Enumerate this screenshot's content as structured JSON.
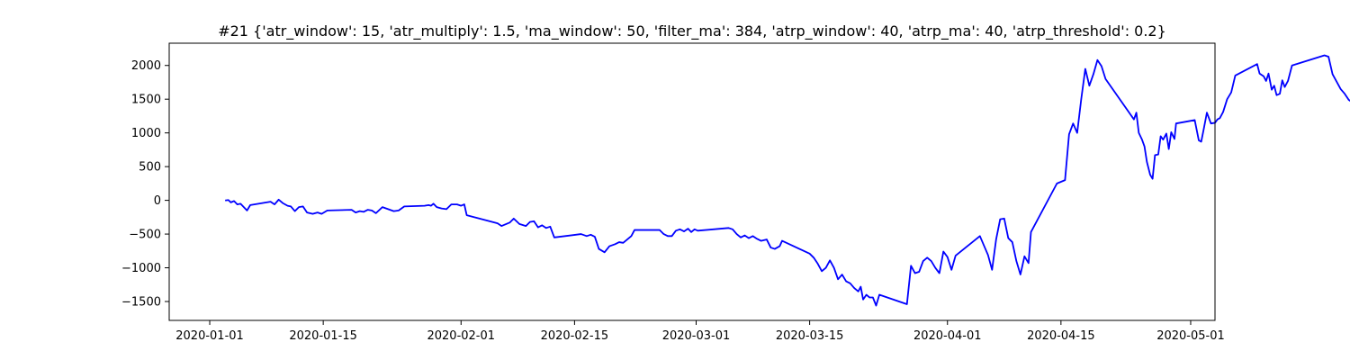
{
  "chart_data": {
    "type": "line",
    "title": "#21 {'atr_window': 15, 'atr_multiply': 1.5, 'ma_window': 50, 'filter_ma': 384, 'atrp_window': 40, 'atrp_ma': 40, 'atrp_threshold': 0.2}",
    "xlabel": "",
    "ylabel": "",
    "grid": false,
    "legend": "none",
    "xlim": [
      "2019-12-27",
      "2020-05-04"
    ],
    "ylim": [
      -1780,
      2330
    ],
    "x_ticks": [
      "2020-01-01",
      "2020-01-15",
      "2020-02-01",
      "2020-02-15",
      "2020-03-01",
      "2020-03-15",
      "2020-04-01",
      "2020-04-15",
      "2020-05-01"
    ],
    "y_ticks": [
      -1500,
      -1000,
      -500,
      0,
      500,
      1000,
      1500,
      2000
    ],
    "series": [
      {
        "color": "#0000ff",
        "points": [
          [
            "2020-01-03",
            0
          ],
          [
            "2020-01-03.3",
            5
          ],
          [
            "2020-01-03.6",
            -30
          ],
          [
            "2020-01-04",
            -10
          ],
          [
            "2020-01-04.4",
            -60
          ],
          [
            "2020-01-04.8",
            -50
          ],
          [
            "2020-01-05.2",
            -100
          ],
          [
            "2020-01-05.6",
            -150
          ],
          [
            "2020-01-06",
            -70
          ],
          [
            "2020-01-08.5",
            -20
          ],
          [
            "2020-01-09",
            -60
          ],
          [
            "2020-01-09.5",
            10
          ],
          [
            "2020-01-10",
            -40
          ],
          [
            "2020-01-10.6",
            -80
          ],
          [
            "2020-01-11",
            -90
          ],
          [
            "2020-01-11.5",
            -160
          ],
          [
            "2020-01-12",
            -100
          ],
          [
            "2020-01-12.5",
            -90
          ],
          [
            "2020-01-13",
            -180
          ],
          [
            "2020-01-13.7",
            -200
          ],
          [
            "2020-01-14.3",
            -180
          ],
          [
            "2020-01-14.8",
            -200
          ],
          [
            "2020-01-15.5",
            -150
          ],
          [
            "2020-01-18.5",
            -140
          ],
          [
            "2020-01-19",
            -180
          ],
          [
            "2020-01-19.5",
            -160
          ],
          [
            "2020-01-20",
            -170
          ],
          [
            "2020-01-20.5",
            -140
          ],
          [
            "2020-01-21",
            -150
          ],
          [
            "2020-01-21.5",
            -190
          ],
          [
            "2020-01-22.3",
            -100
          ],
          [
            "2020-01-23",
            -130
          ],
          [
            "2020-01-23.7",
            -160
          ],
          [
            "2020-01-24.3",
            -150
          ],
          [
            "2020-01-25",
            -90
          ],
          [
            "2020-01-27.5",
            -80
          ],
          [
            "2020-01-28",
            -70
          ],
          [
            "2020-01-28.3",
            -80
          ],
          [
            "2020-01-28.6",
            -50
          ],
          [
            "2020-01-29",
            -100
          ],
          [
            "2020-01-29.6",
            -120
          ],
          [
            "2020-01-30.2",
            -130
          ],
          [
            "2020-01-30.8",
            -60
          ],
          [
            "2020-01-31.5",
            -60
          ],
          [
            "2020-02-01",
            -80
          ],
          [
            "2020-02-01.4",
            -60
          ],
          [
            "2020-02-01.7",
            -220
          ],
          [
            "2020-02-05.5",
            -340
          ],
          [
            "2020-02-06",
            -380
          ],
          [
            "2020-02-07",
            -330
          ],
          [
            "2020-02-07.5",
            -270
          ],
          [
            "2020-02-08.2",
            -350
          ],
          [
            "2020-02-09",
            -380
          ],
          [
            "2020-02-09.5",
            -320
          ],
          [
            "2020-02-10",
            -310
          ],
          [
            "2020-02-10.5",
            -400
          ],
          [
            "2020-02-11",
            -370
          ],
          [
            "2020-02-11.5",
            -410
          ],
          [
            "2020-02-12",
            -390
          ],
          [
            "2020-02-12.5",
            -550
          ],
          [
            "2020-02-15.8",
            -500
          ],
          [
            "2020-02-16.5",
            -530
          ],
          [
            "2020-02-17",
            -510
          ],
          [
            "2020-02-17.5",
            -540
          ],
          [
            "2020-02-18",
            -720
          ],
          [
            "2020-02-18.7",
            -770
          ],
          [
            "2020-02-19.3",
            -680
          ],
          [
            "2020-02-20",
            -650
          ],
          [
            "2020-02-20.5",
            -620
          ],
          [
            "2020-02-21",
            -630
          ],
          [
            "2020-02-21.5",
            -580
          ],
          [
            "2020-02-22",
            -530
          ],
          [
            "2020-02-22.4",
            -440
          ],
          [
            "2020-02-25.5",
            -440
          ],
          [
            "2020-02-26",
            -500
          ],
          [
            "2020-02-26.5",
            -530
          ],
          [
            "2020-02-27",
            -530
          ],
          [
            "2020-02-27.5",
            -450
          ],
          [
            "2020-02-28",
            -430
          ],
          [
            "2020-02-28.5",
            -460
          ],
          [
            "2020-02-29",
            -420
          ],
          [
            "2020-02-29.4",
            -470
          ],
          [
            "2020-02-29.8",
            -430
          ],
          [
            "2020-03-01.2",
            -450
          ],
          [
            "2020-03-05",
            -410
          ],
          [
            "2020-03-05.5",
            -430
          ],
          [
            "2020-03-06",
            -500
          ],
          [
            "2020-03-06.5",
            -550
          ],
          [
            "2020-03-07",
            -520
          ],
          [
            "2020-03-07.5",
            -560
          ],
          [
            "2020-03-08",
            -530
          ],
          [
            "2020-03-08.5",
            -570
          ],
          [
            "2020-03-09",
            -600
          ],
          [
            "2020-03-09.7",
            -580
          ],
          [
            "2020-03-10.2",
            -700
          ],
          [
            "2020-03-10.7",
            -720
          ],
          [
            "2020-03-11.3",
            -680
          ],
          [
            "2020-03-11.6",
            -600
          ],
          [
            "2020-03-15",
            -790
          ],
          [
            "2020-03-15.5",
            -850
          ],
          [
            "2020-03-16",
            -940
          ],
          [
            "2020-03-16.5",
            -1050
          ],
          [
            "2020-03-17",
            -1000
          ],
          [
            "2020-03-17.5",
            -890
          ],
          [
            "2020-03-18",
            -1000
          ],
          [
            "2020-03-18.5",
            -1170
          ],
          [
            "2020-03-19",
            -1100
          ],
          [
            "2020-03-19.5",
            -1200
          ],
          [
            "2020-03-20",
            -1230
          ],
          [
            "2020-03-20.5",
            -1300
          ],
          [
            "2020-03-21",
            -1350
          ],
          [
            "2020-03-21.3",
            -1280
          ],
          [
            "2020-03-21.6",
            -1470
          ],
          [
            "2020-03-22",
            -1400
          ],
          [
            "2020-03-22.4",
            -1440
          ],
          [
            "2020-03-22.8",
            -1440
          ],
          [
            "2020-03-23.2",
            -1560
          ],
          [
            "2020-03-23.6",
            -1400
          ],
          [
            "2020-03-27",
            -1540
          ],
          [
            "2020-03-27.5",
            -970
          ],
          [
            "2020-03-28",
            -1080
          ],
          [
            "2020-03-28.5",
            -1060
          ],
          [
            "2020-03-29",
            -900
          ],
          [
            "2020-03-29.5",
            -850
          ],
          [
            "2020-03-30",
            -900
          ],
          [
            "2020-03-30.5",
            -1000
          ],
          [
            "2020-03-31",
            -1080
          ],
          [
            "2020-03-31.5",
            -760
          ],
          [
            "2020-04-01",
            -840
          ],
          [
            "2020-04-01.5",
            -1030
          ],
          [
            "2020-04-02",
            -820
          ],
          [
            "2020-04-05",
            -530
          ],
          [
            "2020-04-06",
            -810
          ],
          [
            "2020-04-06.5",
            -1030
          ],
          [
            "2020-04-07",
            -580
          ],
          [
            "2020-04-07.5",
            -280
          ],
          [
            "2020-04-08",
            -270
          ],
          [
            "2020-04-08.5",
            -560
          ],
          [
            "2020-04-09",
            -620
          ],
          [
            "2020-04-09.5",
            -900
          ],
          [
            "2020-04-10",
            -1100
          ],
          [
            "2020-04-10.5",
            -830
          ],
          [
            "2020-04-11",
            -930
          ],
          [
            "2020-04-11.3",
            -470
          ],
          [
            "2020-04-14.5",
            250
          ],
          [
            "2020-04-15.5",
            300
          ],
          [
            "2020-04-16",
            980
          ],
          [
            "2020-04-16.5",
            1140
          ],
          [
            "2020-04-17",
            1000
          ],
          [
            "2020-04-17.5",
            1500
          ],
          [
            "2020-04-18",
            1950
          ],
          [
            "2020-04-18.5",
            1700
          ],
          [
            "2020-04-19",
            1870
          ],
          [
            "2020-04-19.5",
            2080
          ],
          [
            "2020-04-20",
            1990
          ],
          [
            "2020-04-20.5",
            1800
          ],
          [
            "2020-04-24",
            1200
          ],
          [
            "2020-04-24.3",
            1300
          ],
          [
            "2020-04-24.6",
            1000
          ],
          [
            "2020-04-25",
            900
          ],
          [
            "2020-04-25.3",
            800
          ],
          [
            "2020-04-25.6",
            570
          ],
          [
            "2020-04-26",
            380
          ],
          [
            "2020-04-26.3",
            320
          ],
          [
            "2020-04-26.6",
            670
          ],
          [
            "2020-04-27",
            680
          ],
          [
            "2020-04-27.3",
            950
          ],
          [
            "2020-04-27.6",
            900
          ],
          [
            "2020-04-28",
            990
          ],
          [
            "2020-04-28.3",
            760
          ],
          [
            "2020-04-28.6",
            1010
          ],
          [
            "2020-04-29",
            910
          ],
          [
            "2020-04-29.2",
            1140
          ],
          [
            "2020-04-31.5",
            1190
          ],
          [
            "2020-04-32",
            890
          ],
          [
            "2020-04-32.3",
            870
          ],
          [
            "2020-04-32.6",
            1050
          ],
          [
            "2020-04-33",
            1300
          ],
          [
            "2020-04-33.5",
            1140
          ],
          [
            "2020-04-34",
            1150
          ],
          [
            "2020-04-34.3",
            1200
          ],
          [
            "2020-04-34.6",
            1220
          ],
          [
            "2020-04-35",
            1310
          ],
          [
            "2020-04-35.5",
            1500
          ],
          [
            "2020-04-36",
            1600
          ],
          [
            "2020-04-36.5",
            1850
          ],
          [
            "2020-04-39.2",
            2020
          ],
          [
            "2020-04-39.5",
            1880
          ],
          [
            "2020-04-40",
            1840
          ],
          [
            "2020-04-40.3",
            1770
          ],
          [
            "2020-04-40.6",
            1880
          ],
          [
            "2020-04-41",
            1640
          ],
          [
            "2020-04-41.3",
            1700
          ],
          [
            "2020-04-41.6",
            1560
          ],
          [
            "2020-04-42",
            1580
          ],
          [
            "2020-04-42.3",
            1780
          ],
          [
            "2020-04-42.6",
            1680
          ],
          [
            "2020-04-43",
            1770
          ],
          [
            "2020-04-43.5",
            2000
          ],
          [
            "2020-04-47.5",
            2150
          ],
          [
            "2020-04-48",
            2130
          ],
          [
            "2020-04-48.5",
            1870
          ],
          [
            "2020-04-49",
            1760
          ],
          [
            "2020-04-49.5",
            1650
          ],
          [
            "2020-04-50",
            1580
          ],
          [
            "2020-04-50.5",
            1490
          ],
          [
            "2020-04-51",
            1450
          ],
          [
            "2020-04-51.5",
            1420
          ],
          [
            "2020-04-52",
            1540
          ],
          [
            "2020-04-52.5",
            1460
          ],
          [
            "2020-04-53",
            1250
          ],
          [
            "2020-04-55.5",
            1270
          ],
          [
            "2020-04-56",
            1400
          ],
          [
            "2020-04-56.5",
            1550
          ],
          [
            "2020-04-57",
            1540
          ],
          [
            "2020-04-57.5",
            1230
          ],
          [
            "2020-04-58",
            1350
          ],
          [
            "2020-04-58.5",
            1310
          ],
          [
            "2020-04-59",
            1280
          ],
          [
            "2020-04-59.5",
            1200
          ],
          [
            "2020-04-60",
            1350
          ],
          [
            "2020-04-60.5",
            1340
          ],
          [
            "2020-04-61",
            1220
          ],
          [
            "2020-04-64.5",
            1080
          ],
          [
            "2020-04-65",
            1160
          ],
          [
            "2020-04-65.5",
            1150
          ],
          [
            "2020-04-66",
            1240
          ],
          [
            "2020-04-66.3",
            1130
          ],
          [
            "2020-04-66.6",
            1300
          ],
          [
            "2020-04-67",
            1340
          ],
          [
            "2020-04-67.3",
            1420
          ],
          [
            "2020-04-67.6",
            1360
          ]
        ]
      }
    ]
  }
}
